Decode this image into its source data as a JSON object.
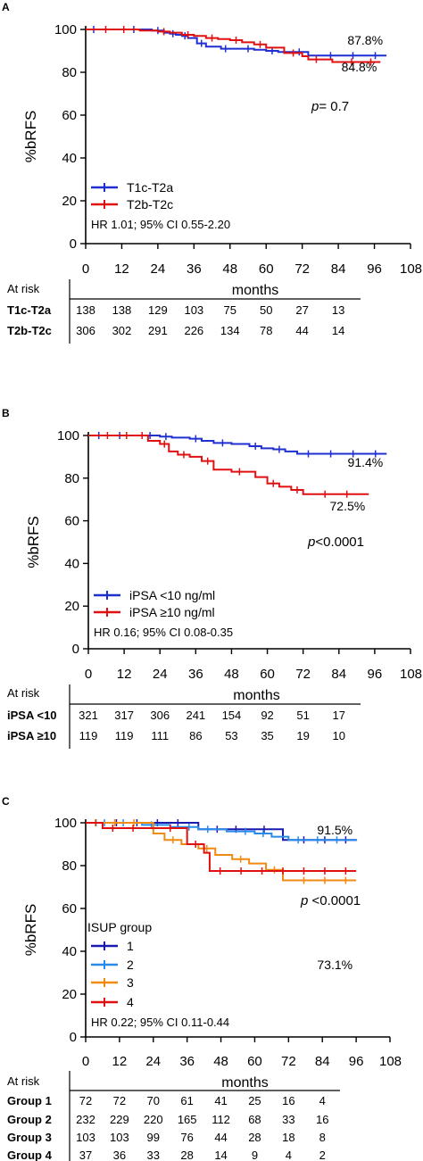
{
  "chart_data": [
    {
      "type": "line",
      "panel_label": "A",
      "ylabel": "%bRFS",
      "xlabel": "months",
      "xlim": [
        0,
        108
      ],
      "ylim": [
        0,
        100
      ],
      "xticks": [
        "0",
        "12",
        "24",
        "36",
        "48",
        "60",
        "72",
        "84",
        "96",
        "108"
      ],
      "yticks": [
        "0",
        "20",
        "40",
        "60",
        "80",
        "100"
      ],
      "series": [
        {
          "name": "T1c-T2a",
          "color": "#1f2fd0",
          "end_label": "87.8%",
          "x": [
            0,
            8,
            14,
            18,
            22,
            26,
            28,
            30,
            32,
            34,
            37,
            40,
            45,
            48,
            52,
            56,
            60,
            64,
            68,
            74,
            100
          ],
          "y": [
            100,
            100,
            100,
            100,
            99.5,
            98.5,
            98,
            97.5,
            97,
            96,
            93.5,
            92,
            91,
            91,
            91,
            90.5,
            90,
            89.5,
            89.5,
            87.8,
            87.8
          ]
        },
        {
          "name": "T2b-T2c",
          "color": "#e01010",
          "end_label": "84.8%",
          "x": [
            0,
            10,
            18,
            24,
            28,
            32,
            36,
            40,
            44,
            48,
            52,
            56,
            60,
            66,
            72,
            74,
            82,
            98
          ],
          "y": [
            100,
            100,
            99.5,
            99,
            98.5,
            97.5,
            97,
            96,
            95.5,
            95,
            94,
            93,
            91.5,
            89,
            87.5,
            86,
            84.8,
            84.8
          ]
        }
      ],
      "annotation_p": "p",
      "annotation_p_rest": "= 0.7",
      "hr_text": "HR 1.01; 95% CI 0.55-2.20",
      "at_risk": {
        "header": "At risk",
        "rows": [
          {
            "label": "T1c-T2a",
            "values": [
              "138",
              "138",
              "129",
              "103",
              "75",
              "50",
              "27",
              "13"
            ]
          },
          {
            "label": "T2b-T2c",
            "values": [
              "306",
              "302",
              "291",
              "226",
              "134",
              "78",
              "44",
              "14"
            ]
          }
        ]
      }
    },
    {
      "type": "line",
      "panel_label": "B",
      "ylabel": "%bRFS",
      "xlabel": "months",
      "xlim": [
        0,
        108
      ],
      "ylim": [
        0,
        100
      ],
      "xticks": [
        "0",
        "12",
        "24",
        "36",
        "48",
        "60",
        "72",
        "84",
        "96",
        "108"
      ],
      "yticks": [
        "0",
        "20",
        "40",
        "60",
        "80",
        "100"
      ],
      "series": [
        {
          "name": "iPSA <10 ng/ml",
          "color": "#1f2fd0",
          "end_label": "91.4%",
          "x": [
            0,
            14,
            24,
            28,
            34,
            38,
            42,
            48,
            54,
            58,
            62,
            66,
            70,
            100
          ],
          "y": [
            100,
            100,
            99.5,
            99,
            98.5,
            97.5,
            96.5,
            96,
            95,
            94,
            93.5,
            92.5,
            91.4,
            91.4
          ]
        },
        {
          "name": "iPSA ≥10 ng/ml",
          "color": "#e01010",
          "end_label": "72.5%",
          "x": [
            0,
            16,
            20,
            24,
            27,
            30,
            34,
            38,
            42,
            48,
            56,
            60,
            64,
            68,
            72,
            94
          ],
          "y": [
            100,
            100,
            97.5,
            96,
            92.5,
            91,
            90,
            88,
            84,
            83,
            80.5,
            77.5,
            76,
            74.5,
            72.5,
            72.5
          ]
        }
      ],
      "annotation_p": "p",
      "annotation_p_rest": "<0.0001",
      "hr_text": "HR 0.16; 95% CI 0.08-0.35",
      "at_risk": {
        "header": "At risk",
        "rows": [
          {
            "label": "iPSA <10",
            "values": [
              "321",
              "317",
              "306",
              "241",
              "154",
              "92",
              "51",
              "17"
            ]
          },
          {
            "label": "iPSA ≥10",
            "values": [
              "119",
              "119",
              "111",
              "86",
              "53",
              "35",
              "19",
              "10"
            ]
          }
        ]
      }
    },
    {
      "type": "line",
      "panel_label": "C",
      "ylabel": "%bRFS",
      "xlabel": "months",
      "xlim": [
        0,
        108
      ],
      "ylim": [
        0,
        100
      ],
      "xticks": [
        "0",
        "12",
        "24",
        "36",
        "48",
        "60",
        "72",
        "84",
        "96",
        "108"
      ],
      "yticks": [
        "0",
        "20",
        "40",
        "60",
        "80",
        "100"
      ],
      "legend_title": "ISUP group",
      "series": [
        {
          "name": "1",
          "color": "#1a1ab0",
          "end_label": "",
          "x": [
            0,
            40,
            60,
            70,
            96
          ],
          "y": [
            100,
            97,
            97,
            92,
            92
          ]
        },
        {
          "name": "2",
          "color": "#2a8ae8",
          "end_label": "91.5%",
          "x": [
            0,
            20,
            30,
            40,
            50,
            60,
            66,
            72,
            96
          ],
          "y": [
            100,
            99,
            98,
            97,
            96,
            95,
            93.5,
            92,
            91.5
          ]
        },
        {
          "name": "3",
          "color": "#f08a10",
          "end_label": "73.1%",
          "x": [
            0,
            24,
            28,
            34,
            40,
            46,
            52,
            58,
            64,
            70,
            96
          ],
          "y": [
            100,
            95,
            92,
            90,
            88,
            85,
            83,
            81,
            78,
            73.1,
            73.1
          ]
        },
        {
          "name": "4",
          "color": "#e01010",
          "end_label": "",
          "x": [
            0,
            6,
            24,
            36,
            42,
            44,
            96
          ],
          "y": [
            100,
            97.5,
            97.5,
            90,
            86,
            77.5,
            77.5
          ]
        }
      ],
      "annotation_p": "p",
      "annotation_p_rest": " <0.0001",
      "hr_text": "HR 0.22; 95% CI 0.11-0.44",
      "at_risk": {
        "header": "At risk",
        "rows": [
          {
            "label": "Group 1",
            "values": [
              "72",
              "72",
              "70",
              "61",
              "41",
              "25",
              "16",
              "4"
            ]
          },
          {
            "label": "Group 2",
            "values": [
              "232",
              "229",
              "220",
              "165",
              "112",
              "68",
              "33",
              "16"
            ]
          },
          {
            "label": "Group 3",
            "values": [
              "103",
              "103",
              "99",
              "76",
              "44",
              "28",
              "18",
              "8"
            ]
          },
          {
            "label": "Group 4",
            "values": [
              "37",
              "36",
              "33",
              "28",
              "14",
              "9",
              "4",
              "2"
            ]
          }
        ]
      }
    }
  ]
}
